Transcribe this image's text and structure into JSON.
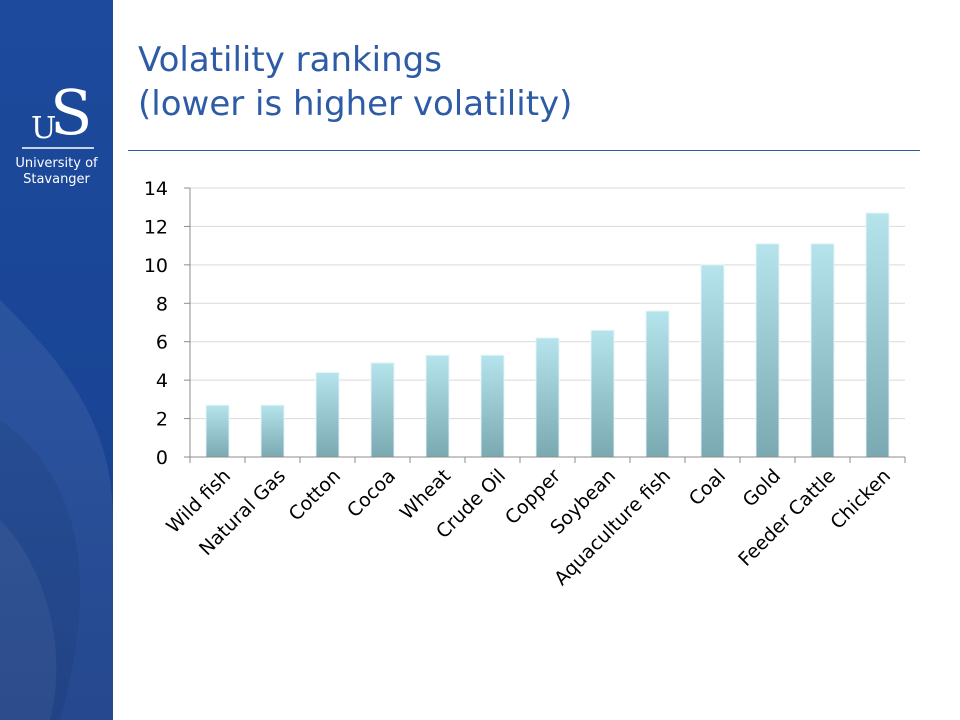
{
  "slide": {
    "title_lines": [
      "Volatility rankings",
      "(lower is higher volatility)"
    ]
  },
  "logo": {
    "text_lines": [
      "University of",
      "Stavanger"
    ]
  },
  "colors": {
    "sidebar": "#1a4596",
    "title": "#2e5ba6",
    "bar_top": "#b6e4ec",
    "bar_bottom": "#7aa9b2"
  },
  "chart_data": {
    "type": "bar",
    "title": "",
    "xlabel": "",
    "ylabel": "",
    "categories": [
      "Wild fish",
      "Natural Gas",
      "Cotton",
      "Cocoa",
      "Wheat",
      "Crude Oil",
      "Copper",
      "Soybean",
      "Aquaculture fish",
      "Coal",
      "Gold",
      "Feeder Cattle",
      "Chicken"
    ],
    "values": [
      2.7,
      2.7,
      4.4,
      4.9,
      5.3,
      5.3,
      6.2,
      6.6,
      7.6,
      10.0,
      11.1,
      11.1,
      12.7
    ],
    "ylim": [
      0,
      14
    ],
    "yticks": [
      0,
      2,
      4,
      6,
      8,
      10,
      12,
      14
    ],
    "grid": true,
    "legend": "none"
  }
}
